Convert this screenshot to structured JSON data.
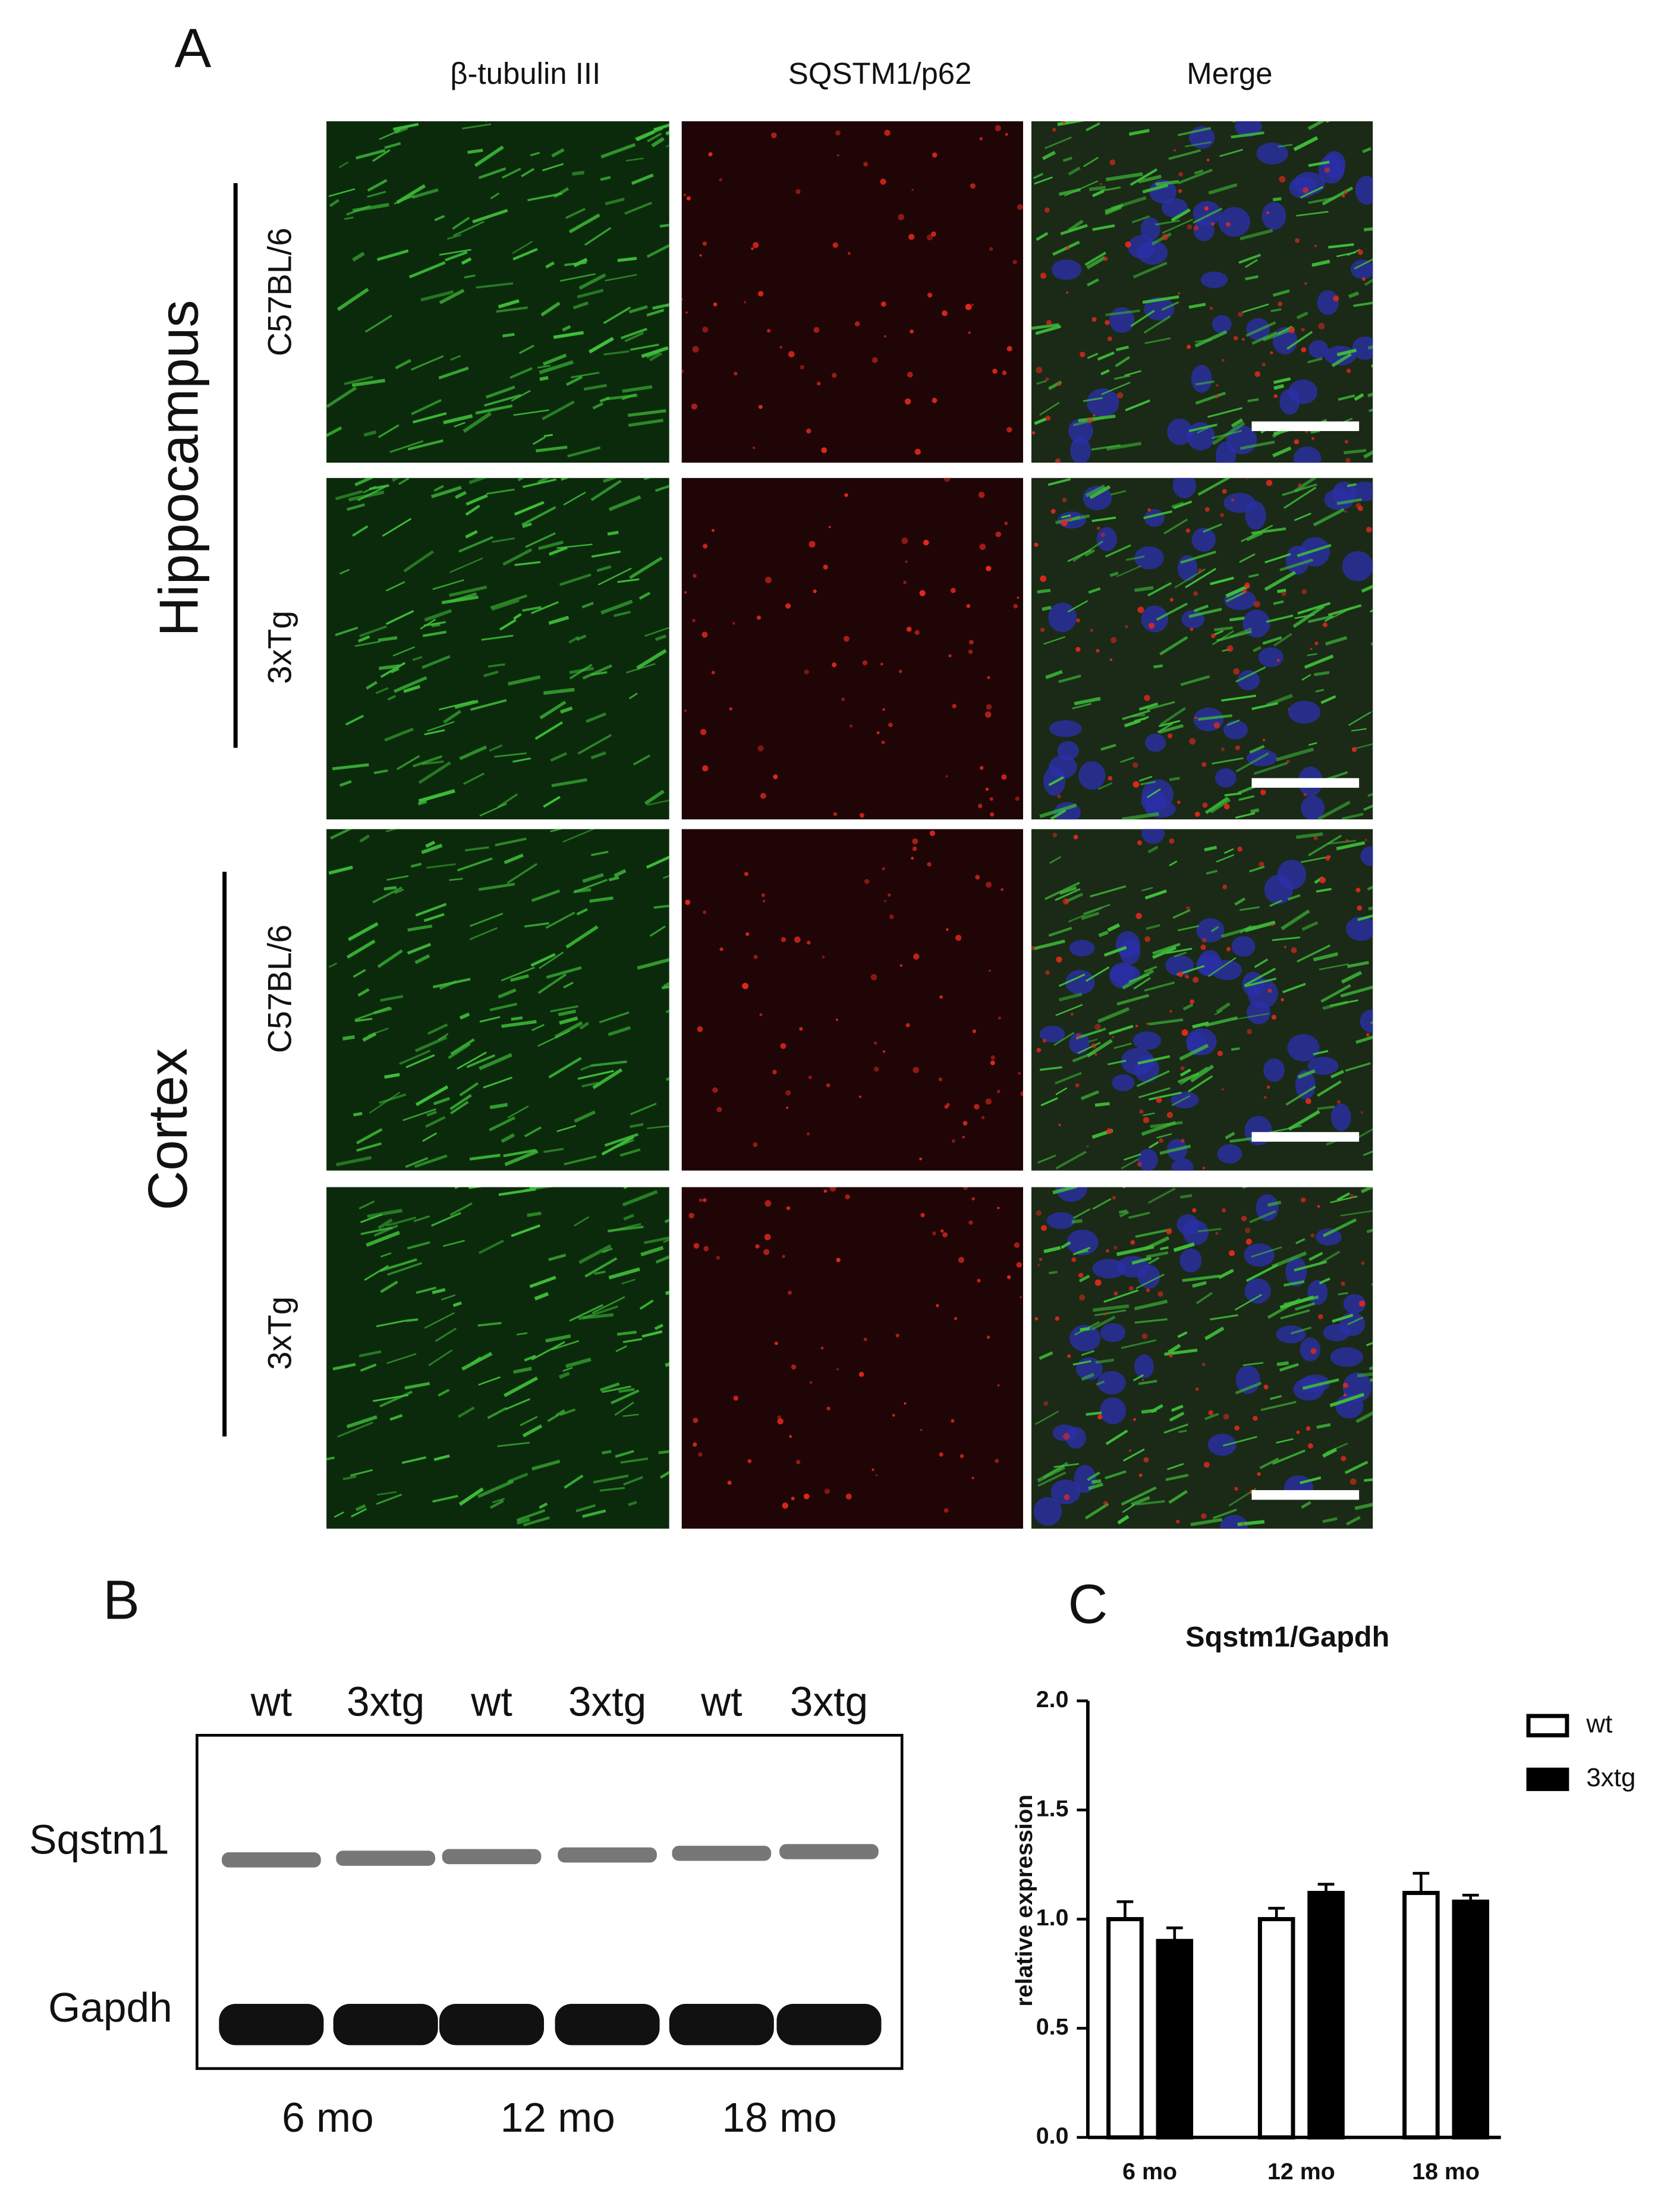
{
  "panel_a": {
    "label": "A",
    "columns": [
      "β-tubulin III",
      "SQSTM1/p62",
      "Merge"
    ],
    "regions": [
      "Hippocampus",
      "Cortex"
    ],
    "rows": [
      "C57BL/6",
      "3xTg",
      "C57BL/6",
      "3xTg"
    ]
  },
  "panel_b": {
    "label": "B",
    "lanes": [
      "wt",
      "3xtg",
      "wt",
      "3xtg",
      "wt",
      "3xtg"
    ],
    "bands": [
      "Sqstm1",
      "Gapdh"
    ],
    "ages": [
      "6 mo",
      "12 mo",
      "18 mo"
    ]
  },
  "chart_data": {
    "type": "bar",
    "panel_label": "C",
    "title": "Sqstm1/Gapdh",
    "y_label": "relative expression",
    "categories": [
      "6 mo",
      "12 mo",
      "18 mo"
    ],
    "series": [
      {
        "name": "wt",
        "color": "#ffffff",
        "values": [
          1.0,
          1.0,
          1.12
        ],
        "errors": [
          0.08,
          0.05,
          0.09
        ]
      },
      {
        "name": "3xtg",
        "color": "#000000",
        "values": [
          0.9,
          1.12,
          1.08
        ],
        "errors": [
          0.06,
          0.04,
          0.03
        ]
      }
    ],
    "ylim": [
      0,
      2
    ],
    "yticks": [
      {
        "value": 0,
        "label": "0.0"
      },
      0.5,
      {
        "value": 1,
        "label": "1.0"
      },
      1.5,
      {
        "value": 2,
        "label": "2.0"
      }
    ],
    "legend": "right"
  }
}
